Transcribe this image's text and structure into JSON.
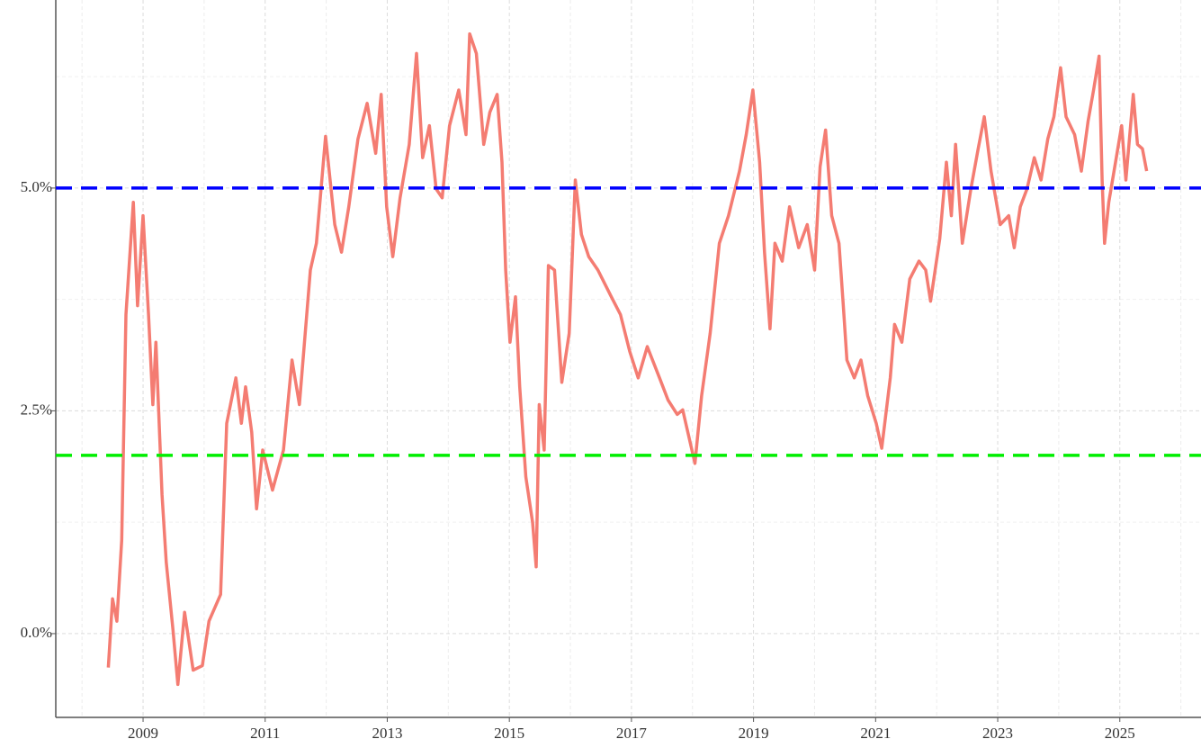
{
  "chart_data": {
    "type": "line",
    "x": [
      2008.43,
      2008.5,
      2008.57,
      2008.65,
      2008.72,
      2008.84,
      2008.91,
      2009.0,
      2009.09,
      2009.16,
      2009.21,
      2009.31,
      2009.38,
      2009.49,
      2009.57,
      2009.68,
      2009.82,
      2009.97,
      2010.08,
      2010.27,
      2010.37,
      2010.52,
      2010.61,
      2010.68,
      2010.78,
      2010.86,
      2010.96,
      2011.12,
      2011.3,
      2011.44,
      2011.56,
      2011.74,
      2011.84,
      2011.99,
      2012.14,
      2012.25,
      2012.37,
      2012.52,
      2012.67,
      2012.81,
      2012.9,
      2012.99,
      2013.09,
      2013.21,
      2013.36,
      2013.48,
      2013.58,
      2013.69,
      2013.8,
      2013.9,
      2014.02,
      2014.17,
      2014.29,
      2014.35,
      2014.46,
      2014.58,
      2014.68,
      2014.8,
      2014.88,
      2014.94,
      2015.01,
      2015.1,
      2015.17,
      2015.27,
      2015.38,
      2015.44,
      2015.49,
      2015.57,
      2015.64,
      2015.74,
      2015.86,
      2015.98,
      2016.08,
      2016.18,
      2016.3,
      2016.45,
      2016.67,
      2016.82,
      2016.97,
      2017.11,
      2017.26,
      2017.46,
      2017.6,
      2017.75,
      2017.84,
      2018.04,
      2018.15,
      2018.29,
      2018.44,
      2018.59,
      2018.77,
      2018.88,
      2018.99,
      2019.1,
      2019.18,
      2019.27,
      2019.35,
      2019.47,
      2019.59,
      2019.74,
      2019.88,
      2020.0,
      2020.09,
      2020.18,
      2020.28,
      2020.4,
      2020.47,
      2020.53,
      2020.65,
      2020.76,
      2020.87,
      2021.01,
      2021.1,
      2021.24,
      2021.31,
      2021.43,
      2021.56,
      2021.71,
      2021.82,
      2021.9,
      2022.05,
      2022.16,
      2022.24,
      2022.31,
      2022.42,
      2022.56,
      2022.68,
      2022.78,
      2022.89,
      2023.04,
      2023.18,
      2023.27,
      2023.37,
      2023.48,
      2023.6,
      2023.71,
      2023.82,
      2023.92,
      2024.03,
      2024.12,
      2024.26,
      2024.37,
      2024.48,
      2024.57,
      2024.66,
      2024.71,
      2024.75,
      2024.82,
      2024.93,
      2025.03,
      2025.1,
      2025.22,
      2025.29,
      2025.37,
      2025.44
    ],
    "series": [
      {
        "color": "#f47c72",
        "values": [
          -0.38,
          0.39,
          0.14,
          1.05,
          3.58,
          4.84,
          3.68,
          4.69,
          3.58,
          2.57,
          3.27,
          1.56,
          0.8,
          0.04,
          -0.57,
          0.24,
          -0.41,
          -0.36,
          0.14,
          0.44,
          2.36,
          2.87,
          2.36,
          2.77,
          2.26,
          1.4,
          2.06,
          1.61,
          2.06,
          3.07,
          2.57,
          4.08,
          4.38,
          5.58,
          4.59,
          4.28,
          4.79,
          5.55,
          5.95,
          5.39,
          6.05,
          4.79,
          4.23,
          4.89,
          5.49,
          6.51,
          5.34,
          5.7,
          4.99,
          4.89,
          5.7,
          6.1,
          5.6,
          6.73,
          6.51,
          5.49,
          5.85,
          6.05,
          5.29,
          4.08,
          3.27,
          3.78,
          2.77,
          1.76,
          1.25,
          0.75,
          2.57,
          2.06,
          4.13,
          4.08,
          2.82,
          3.37,
          5.09,
          4.48,
          4.23,
          4.08,
          3.78,
          3.58,
          3.17,
          2.87,
          3.22,
          2.87,
          2.62,
          2.46,
          2.51,
          1.91,
          2.67,
          3.37,
          4.38,
          4.69,
          5.19,
          5.6,
          6.1,
          5.29,
          4.28,
          3.42,
          4.38,
          4.18,
          4.79,
          4.33,
          4.59,
          4.08,
          5.24,
          5.65,
          4.69,
          4.38,
          3.68,
          3.07,
          2.87,
          3.07,
          2.67,
          2.36,
          2.08,
          2.87,
          3.47,
          3.27,
          3.98,
          4.18,
          4.08,
          3.73,
          4.43,
          5.29,
          4.69,
          5.49,
          4.38,
          4.99,
          5.44,
          5.8,
          5.19,
          4.59,
          4.69,
          4.33,
          4.79,
          4.99,
          5.34,
          5.09,
          5.55,
          5.8,
          6.35,
          5.8,
          5.6,
          5.19,
          5.75,
          6.1,
          6.48,
          5.09,
          4.38,
          4.84,
          5.29,
          5.7,
          5.09,
          6.05,
          5.49,
          5.44,
          5.19
        ]
      }
    ],
    "hlines": [
      {
        "value": 5,
        "color": "#0000ff"
      },
      {
        "value": 2,
        "color": "#00ee00"
      }
    ],
    "xlim": [
      2007.57,
      2026.33
    ],
    "ylim": [
      -0.94,
      7.11
    ],
    "xticks": [
      2009,
      2011,
      2013,
      2015,
      2017,
      2019,
      2021,
      2023,
      2025
    ],
    "yticks": [
      {
        "value": 0,
        "label": "0.0%"
      },
      {
        "value": 2.5,
        "label": "2.5%"
      },
      {
        "value": 5,
        "label": "5.0%"
      }
    ],
    "x_minor_ticks": [
      2008,
      2010,
      2012,
      2014,
      2016,
      2018,
      2020,
      2022,
      2024,
      2026
    ],
    "y_minor_ticks": [
      1.25,
      3.75,
      6.25
    ],
    "grid": true
  }
}
